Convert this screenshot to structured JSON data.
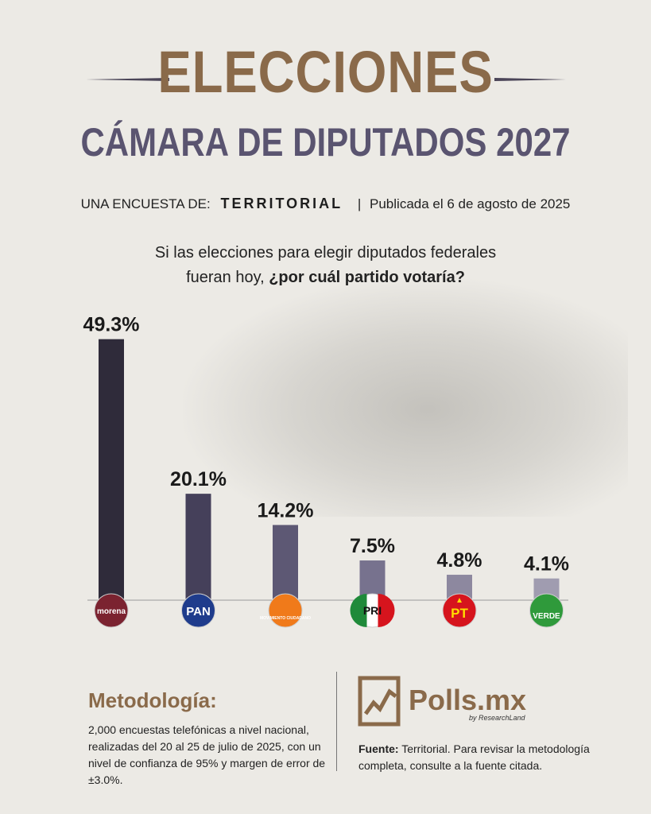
{
  "header": {
    "title": "ELECCIONES",
    "subtitle": "CÁMARA DE DIPUTADOS 2027",
    "byline_prefix": "UNA ENCUESTA DE:",
    "byline_brand": "TERRITORIAL",
    "byline_separator": "|",
    "byline_published": "Publicada el 6 de agosto de 2025"
  },
  "question": {
    "line1": "Si las elecciones para elegir diputados federales",
    "line2_plain": "fueran hoy,",
    "line2_bold": "¿por cuál partido votaría?"
  },
  "chart_data": {
    "type": "bar",
    "categories": [
      "morena",
      "PAN",
      "MOVIMIENTO CIUDADANO",
      "PRI",
      "PT",
      "VERDE"
    ],
    "values": [
      49.3,
      20.1,
      14.2,
      7.5,
      4.8,
      4.1
    ],
    "labels": [
      "49.3%",
      "20.1%",
      "14.2%",
      "7.5%",
      "4.8%",
      "4.1%"
    ],
    "ylim": [
      0,
      50
    ],
    "grid": false,
    "bar_colors": [
      "#2f2b3a",
      "#45405a",
      "#5d5874",
      "#77728e",
      "#8d889f",
      "#a09cb0"
    ],
    "logos": [
      {
        "name": "morena",
        "text": "morena",
        "bg": "#7b2330",
        "fg": "#ffffff"
      },
      {
        "name": "pan",
        "text": "PAN",
        "bg": "#1f3c8c",
        "fg": "#ffffff"
      },
      {
        "name": "mc",
        "text": "MOVIMIENTO CIUDADANO",
        "bg": "#f07a1a",
        "fg": "#ffffff"
      },
      {
        "name": "pri",
        "text": "PRI",
        "bg": "#ffffff",
        "fg": "#111111"
      },
      {
        "name": "pt",
        "text": "PT",
        "bg": "#d6141d",
        "fg": "#ffdd00"
      },
      {
        "name": "verde",
        "text": "VERDE",
        "bg": "#2f9a3b",
        "fg": "#ffffff"
      }
    ]
  },
  "methodology": {
    "title": "Metodología:",
    "body": "2,000 encuestas telefónicas a nivel nacional, realizadas del 20 al 25 de julio de 2025, con un nivel de confianza de 95% y margen de error de ±3.0%."
  },
  "footer": {
    "brand": "Polls.mx",
    "brand_sub": "by ResearchLand",
    "source_label": "Fuente:",
    "source_text": "Territorial. Para revisar la metodología completa, consulte a la fuente citada."
  },
  "colors": {
    "accent_brown": "#8a6a4a",
    "accent_purple": "#5a5470",
    "background": "#eceae5"
  }
}
